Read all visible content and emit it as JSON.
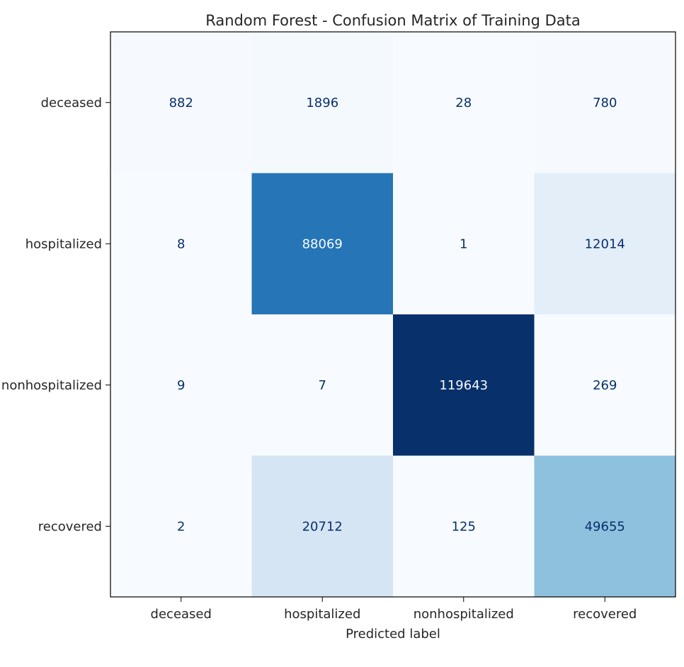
{
  "chart_data": {
    "type": "heatmap",
    "title": "Random Forest - Confusion Matrix of Training Data",
    "xlabel": "Predicted label",
    "ylabel": "",
    "x_categories": [
      "deceased",
      "hospitalized",
      "nonhospitalized",
      "recovered"
    ],
    "y_categories": [
      "deceased",
      "hospitalized",
      "nonhospitalized",
      "recovered"
    ],
    "values": [
      [
        882,
        1896,
        28,
        780
      ],
      [
        8,
        88069,
        1,
        12014
      ],
      [
        9,
        7,
        119643,
        269
      ],
      [
        2,
        20712,
        125,
        49655
      ]
    ],
    "colormap": "Blues",
    "colorbar": false
  }
}
